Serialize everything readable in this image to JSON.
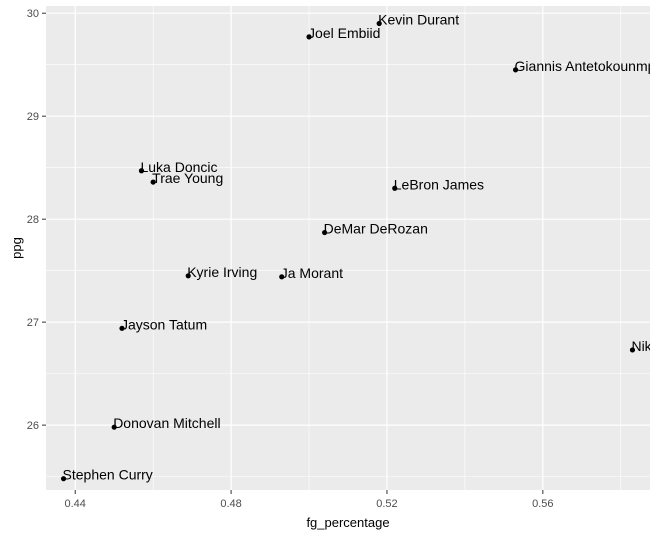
{
  "chart_data": {
    "type": "scatter",
    "title": "",
    "xlabel": "fg_percentage",
    "ylabel": "ppg",
    "xlim": [
      0.4325,
      0.5875
    ],
    "ylim": [
      25.37,
      30.07
    ],
    "x_ticks": [
      0.44,
      0.48,
      0.52,
      0.56
    ],
    "x_tick_labels": [
      "0.44",
      "0.48",
      "0.52",
      "0.56"
    ],
    "y_ticks": [
      26,
      27,
      28,
      29,
      30
    ],
    "y_tick_labels": [
      "26",
      "27",
      "28",
      "29",
      "30"
    ],
    "grid": true,
    "legend": "none",
    "colors": {
      "panel": "#ebebeb",
      "grid": "#ffffff",
      "point": "#000000"
    },
    "points": [
      {
        "label": "Kevin Durant",
        "x": 0.518,
        "y": 29.9
      },
      {
        "label": "Joel Embiid",
        "x": 0.5,
        "y": 29.77
      },
      {
        "label": "Giannis Antetokounmpo",
        "x": 0.553,
        "y": 29.45
      },
      {
        "label": "Luka Doncic",
        "x": 0.457,
        "y": 28.47
      },
      {
        "label": "Trae Young",
        "x": 0.46,
        "y": 28.36
      },
      {
        "label": "LeBron James",
        "x": 0.522,
        "y": 28.3
      },
      {
        "label": "DeMar DeRozan",
        "x": 0.504,
        "y": 27.87
      },
      {
        "label": "Kyrie Irving",
        "x": 0.469,
        "y": 27.45
      },
      {
        "label": "Ja Morant",
        "x": 0.493,
        "y": 27.44
      },
      {
        "label": "Jayson Tatum",
        "x": 0.452,
        "y": 26.94
      },
      {
        "label": "Nikola Jokic",
        "x": 0.583,
        "y": 26.73
      },
      {
        "label": "Donovan Mitchell",
        "x": 0.45,
        "y": 25.98
      },
      {
        "label": "Stephen Curry",
        "x": 0.437,
        "y": 25.48
      }
    ]
  }
}
